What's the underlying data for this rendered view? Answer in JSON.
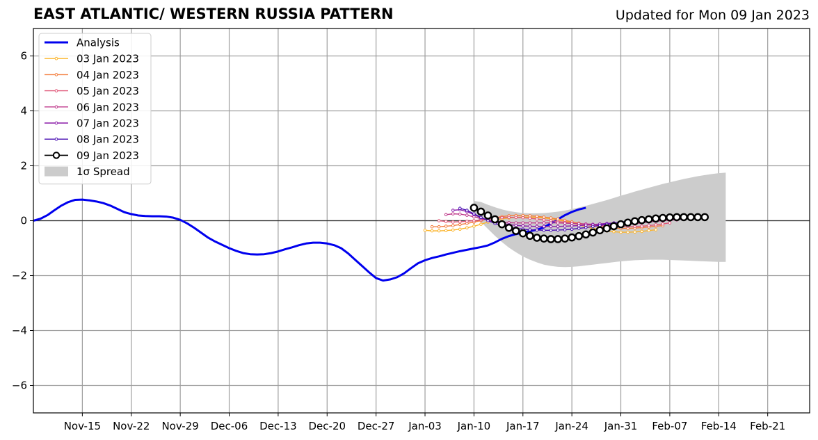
{
  "header": {
    "title": "EAST ATLANTIC/ WESTERN RUSSIA PATTERN",
    "updated": "Updated for Mon 09 Jan 2023"
  },
  "chart_data": {
    "type": "line",
    "title": "EAST ATLANTIC/ WESTERN RUSSIA PATTERN",
    "subtitle": "Updated for Mon 09 Jan 2023",
    "xlabel": "",
    "ylabel": "",
    "x_axis": {
      "type": "date",
      "range": [
        "2022-11-08",
        "2023-02-27"
      ],
      "ticks": [
        {
          "date": "2022-11-15",
          "label": "Nov-15"
        },
        {
          "date": "2022-11-22",
          "label": "Nov-22"
        },
        {
          "date": "2022-11-29",
          "label": "Nov-29"
        },
        {
          "date": "2022-12-06",
          "label": "Dec-06"
        },
        {
          "date": "2022-12-13",
          "label": "Dec-13"
        },
        {
          "date": "2022-12-20",
          "label": "Dec-20"
        },
        {
          "date": "2022-12-27",
          "label": "Dec-27"
        },
        {
          "date": "2023-01-03",
          "label": "Jan-03"
        },
        {
          "date": "2023-01-10",
          "label": "Jan-10"
        },
        {
          "date": "2023-01-17",
          "label": "Jan-17"
        },
        {
          "date": "2023-01-24",
          "label": "Jan-24"
        },
        {
          "date": "2023-01-31",
          "label": "Jan-31"
        },
        {
          "date": "2023-02-07",
          "label": "Feb-07"
        },
        {
          "date": "2023-02-14",
          "label": "Feb-14"
        },
        {
          "date": "2023-02-21",
          "label": "Feb-21"
        }
      ]
    },
    "y_axis": {
      "range": [
        -7,
        7
      ],
      "ticks": [
        {
          "value": -6,
          "label": "−6"
        },
        {
          "value": -4,
          "label": "−4"
        },
        {
          "value": -2,
          "label": "−2"
        },
        {
          "value": 0,
          "label": "0"
        },
        {
          "value": 2,
          "label": "2"
        },
        {
          "value": 4,
          "label": "4"
        },
        {
          "value": 6,
          "label": "6"
        }
      ]
    },
    "grid": true,
    "legend_position": "top-left",
    "analysis": {
      "name": "Analysis",
      "color": "#0000ee",
      "start": "2022-11-08",
      "step_days": 1,
      "values": [
        0.0,
        0.07,
        0.2,
        0.38,
        0.55,
        0.68,
        0.76,
        0.77,
        0.74,
        0.7,
        0.64,
        0.55,
        0.43,
        0.31,
        0.24,
        0.19,
        0.17,
        0.16,
        0.16,
        0.15,
        0.11,
        0.03,
        -0.1,
        -0.26,
        -0.44,
        -0.62,
        -0.76,
        -0.88,
        -1.0,
        -1.1,
        -1.18,
        -1.22,
        -1.23,
        -1.22,
        -1.18,
        -1.12,
        -1.04,
        -0.97,
        -0.89,
        -0.83,
        -0.8,
        -0.8,
        -0.83,
        -0.89,
        -1.0,
        -1.19,
        -1.42,
        -1.65,
        -1.88,
        -2.09,
        -2.18,
        -2.14,
        -2.06,
        -1.92,
        -1.73,
        -1.55,
        -1.44,
        -1.36,
        -1.3,
        -1.23,
        -1.17,
        -1.11,
        -1.06,
        -1.01,
        -0.96,
        -0.9,
        -0.79,
        -0.66,
        -0.56,
        -0.49,
        -0.43,
        -0.38,
        -0.33,
        -0.24,
        -0.1,
        0.05,
        0.2,
        0.32,
        0.41,
        0.47
      ]
    },
    "forecasts": [
      {
        "name": "03 Jan 2023",
        "color": "#fbb42a",
        "start": "2023-01-03",
        "step_days": 1,
        "values": [
          -0.35,
          -0.37,
          -0.37,
          -0.36,
          -0.34,
          -0.31,
          -0.26,
          -0.2,
          -0.13,
          -0.05,
          0.02,
          0.07,
          0.1,
          0.12,
          0.13,
          0.13,
          0.12,
          0.1,
          0.07,
          0.03,
          -0.02,
          -0.08,
          -0.15,
          -0.22,
          -0.28,
          -0.33,
          -0.37,
          -0.4,
          -0.42,
          -0.42,
          -0.41,
          -0.39,
          -0.36,
          -0.33
        ]
      },
      {
        "name": "04 Jan 2023",
        "color": "#f37d3c",
        "start": "2023-01-04",
        "step_days": 1,
        "values": [
          -0.22,
          -0.22,
          -0.2,
          -0.18,
          -0.14,
          -0.1,
          -0.05,
          0.0,
          0.06,
          0.11,
          0.15,
          0.18,
          0.19,
          0.19,
          0.18,
          0.16,
          0.13,
          0.1,
          0.06,
          0.01,
          -0.04,
          -0.09,
          -0.14,
          -0.18,
          -0.22,
          -0.25,
          -0.27,
          -0.28,
          -0.28,
          -0.27,
          -0.25,
          -0.23,
          -0.2,
          -0.18
        ]
      },
      {
        "name": "05 Jan 2023",
        "color": "#e05778",
        "start": "2023-01-05",
        "step_days": 1,
        "values": [
          0.0,
          -0.03,
          -0.05,
          -0.04,
          -0.02,
          0.0,
          0.03,
          0.06,
          0.09,
          0.11,
          0.12,
          0.12,
          0.11,
          0.09,
          0.06,
          0.03,
          0.0,
          -0.03,
          -0.06,
          -0.09,
          -0.12,
          -0.14,
          -0.16,
          -0.18,
          -0.19,
          -0.2,
          -0.21,
          -0.21,
          -0.21,
          -0.2,
          -0.18,
          -0.15,
          -0.12,
          -0.08
        ]
      },
      {
        "name": "06 Jan 2023",
        "color": "#bf3a8b",
        "start": "2023-01-06",
        "step_days": 1,
        "values": [
          0.22,
          0.25,
          0.24,
          0.2,
          0.14,
          0.08,
          0.03,
          -0.02,
          -0.05,
          -0.07,
          -0.08,
          -0.08,
          -0.08,
          -0.08,
          -0.08,
          -0.08,
          -0.08,
          -0.09,
          -0.1,
          -0.11,
          -0.12,
          -0.13,
          -0.14,
          -0.15,
          -0.15,
          -0.14,
          -0.13,
          -0.11,
          -0.08,
          -0.05,
          -0.02,
          0.0,
          0.02,
          0.03
        ]
      },
      {
        "name": "07 Jan 2023",
        "color": "#8a1ca8",
        "start": "2023-01-07",
        "step_days": 1,
        "values": [
          0.38,
          0.4,
          0.33,
          0.22,
          0.11,
          0.02,
          -0.05,
          -0.1,
          -0.14,
          -0.17,
          -0.19,
          -0.2,
          -0.21,
          -0.21,
          -0.21,
          -0.21,
          -0.2,
          -0.19,
          -0.18,
          -0.16,
          -0.14,
          -0.12,
          -0.1,
          -0.08,
          -0.06,
          -0.04,
          -0.02,
          0.0,
          0.02,
          0.03,
          0.04,
          0.05,
          0.05,
          0.05
        ]
      },
      {
        "name": "08 Jan 2023",
        "color": "#4a0fb3",
        "start": "2023-01-08",
        "step_days": 1,
        "values": [
          0.45,
          0.38,
          0.25,
          0.12,
          0.0,
          -0.1,
          -0.18,
          -0.24,
          -0.28,
          -0.31,
          -0.33,
          -0.34,
          -0.35,
          -0.35,
          -0.34,
          -0.33,
          -0.31,
          -0.28,
          -0.25,
          -0.21,
          -0.17,
          -0.13,
          -0.09,
          -0.05,
          -0.02,
          0.01,
          0.03,
          0.05,
          0.06,
          0.07,
          0.08,
          0.08,
          0.08,
          0.08
        ]
      },
      {
        "name": "09 Jan 2023",
        "color": "#000000",
        "start": "2023-01-10",
        "step_days": 1,
        "values": [
          0.47,
          0.33,
          0.19,
          0.05,
          -0.13,
          -0.26,
          -0.37,
          -0.46,
          -0.55,
          -0.62,
          -0.65,
          -0.67,
          -0.67,
          -0.65,
          -0.61,
          -0.56,
          -0.5,
          -0.43,
          -0.35,
          -0.28,
          -0.2,
          -0.13,
          -0.07,
          -0.02,
          0.02,
          0.05,
          0.08,
          0.1,
          0.12,
          0.13,
          0.13,
          0.13,
          0.13,
          0.13
        ]
      }
    ],
    "spread": {
      "name": "1σ Spread",
      "color": "#cccccc",
      "start": "2023-01-10",
      "step_days": 1,
      "upper": [
        0.72,
        0.68,
        0.58,
        0.49,
        0.41,
        0.35,
        0.31,
        0.28,
        0.27,
        0.27,
        0.28,
        0.3,
        0.33,
        0.37,
        0.42,
        0.48,
        0.54,
        0.61,
        0.68,
        0.75,
        0.83,
        0.91,
        0.98,
        1.06,
        1.13,
        1.2,
        1.27,
        1.34,
        1.4,
        1.46,
        1.52,
        1.57,
        1.62,
        1.66,
        1.7,
        1.73,
        1.75
      ],
      "lower": [
        0.22,
        -0.05,
        -0.3,
        -0.55,
        -0.78,
        -0.98,
        -1.15,
        -1.3,
        -1.42,
        -1.52,
        -1.6,
        -1.65,
        -1.68,
        -1.69,
        -1.68,
        -1.66,
        -1.63,
        -1.6,
        -1.57,
        -1.54,
        -1.51,
        -1.48,
        -1.46,
        -1.44,
        -1.43,
        -1.42,
        -1.42,
        -1.42,
        -1.43,
        -1.44,
        -1.45,
        -1.46,
        -1.47,
        -1.48,
        -1.49,
        -1.5,
        -1.5
      ]
    }
  }
}
